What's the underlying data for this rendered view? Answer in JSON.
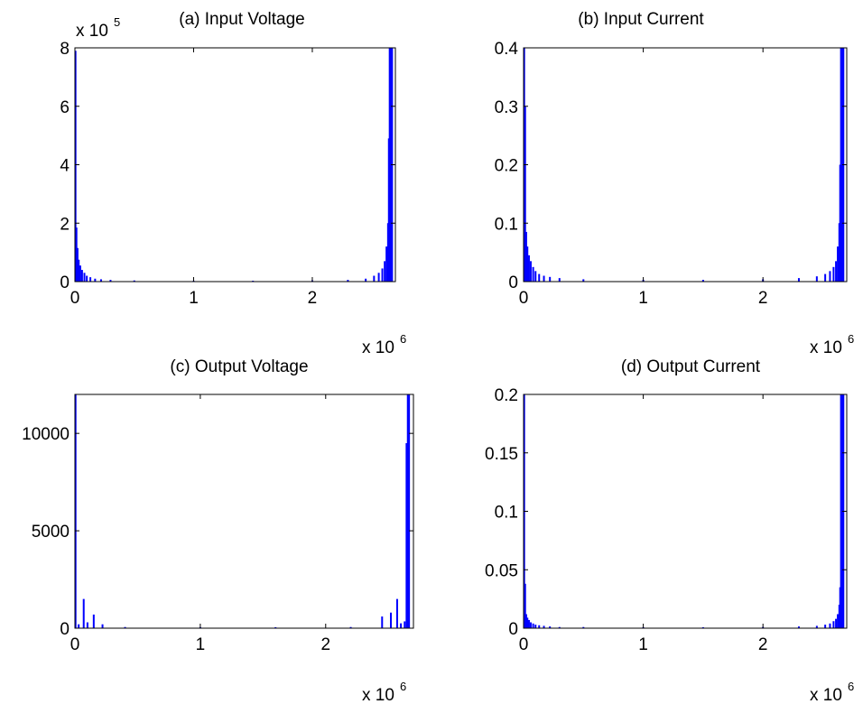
{
  "colors": {
    "series": "#0000ff",
    "axes": "#000000",
    "background": "#ffffff"
  },
  "chart_data": [
    {
      "type": "bar",
      "title": "(a) Input Voltage",
      "xlim": [
        0,
        2.7
      ],
      "ylim": [
        0,
        8
      ],
      "x_ticks": [
        0,
        1,
        2
      ],
      "x_tick_labels": [
        "0",
        "1",
        "2"
      ],
      "y_ticks": [
        0,
        2,
        4,
        6,
        8
      ],
      "y_tick_labels": [
        "0",
        "2",
        "4",
        "6",
        "8"
      ],
      "x_multiplier": {
        "base": "x 10",
        "exponent": "6"
      },
      "y_multiplier": {
        "base": "x 10",
        "exponent": "5"
      },
      "grid": false,
      "x": [
        0.005,
        0.013,
        0.022,
        0.032,
        0.045,
        0.06,
        0.08,
        0.1,
        0.13,
        0.17,
        0.22,
        0.3,
        0.5,
        1.0,
        1.5,
        2.0,
        2.3,
        2.45,
        2.52,
        2.56,
        2.59,
        2.61,
        2.625,
        2.638,
        2.645,
        2.652,
        2.66,
        2.666,
        2.672
      ],
      "values": [
        7.9,
        1.85,
        1.15,
        0.75,
        0.55,
        0.4,
        0.3,
        0.2,
        0.15,
        0.1,
        0.08,
        0.06,
        0.04,
        0.03,
        0.03,
        0.04,
        0.06,
        0.1,
        0.2,
        0.3,
        0.45,
        0.7,
        1.2,
        2.0,
        4.9,
        8.0,
        8.0,
        8.0,
        8.0
      ]
    },
    {
      "type": "bar",
      "title": "(b) Input Current",
      "xlim": [
        0,
        2.7
      ],
      "ylim": [
        0,
        0.4
      ],
      "x_ticks": [
        0,
        1,
        2
      ],
      "x_tick_labels": [
        "0",
        "1",
        "2"
      ],
      "y_ticks": [
        0,
        0.1,
        0.2,
        0.3,
        0.4
      ],
      "y_tick_labels": [
        "0",
        "0.1",
        "0.2",
        "0.3",
        "0.4"
      ],
      "x_multiplier": {
        "base": "x 10",
        "exponent": "6"
      },
      "grid": false,
      "x": [
        0.005,
        0.013,
        0.022,
        0.032,
        0.045,
        0.06,
        0.08,
        0.1,
        0.13,
        0.17,
        0.22,
        0.3,
        0.5,
        1.0,
        1.5,
        2.0,
        2.3,
        2.45,
        2.52,
        2.56,
        2.59,
        2.61,
        2.625,
        2.638,
        2.645,
        2.652,
        2.66,
        2.666,
        2.672
      ],
      "values": [
        0.4,
        0.3,
        0.085,
        0.06,
        0.045,
        0.035,
        0.025,
        0.018,
        0.013,
        0.01,
        0.008,
        0.006,
        0.004,
        0.003,
        0.003,
        0.004,
        0.006,
        0.009,
        0.013,
        0.018,
        0.025,
        0.035,
        0.06,
        0.1,
        0.2,
        0.4,
        0.4,
        0.4,
        0.4
      ]
    },
    {
      "type": "bar",
      "title": "(c) Output Voltage",
      "xlim": [
        0,
        2.7
      ],
      "ylim": [
        0,
        12000
      ],
      "x_ticks": [
        0,
        1,
        2
      ],
      "x_tick_labels": [
        "0",
        "1",
        "2"
      ],
      "y_ticks": [
        0,
        5000,
        10000
      ],
      "y_tick_labels": [
        "0",
        "5000",
        "10000"
      ],
      "x_multiplier": {
        "base": "x 10",
        "exponent": "6"
      },
      "grid": false,
      "x": [
        0.005,
        0.03,
        0.07,
        0.1,
        0.15,
        0.22,
        0.4,
        1.0,
        1.6,
        2.2,
        2.45,
        2.52,
        2.57,
        2.6,
        2.63,
        2.645,
        2.655,
        2.665
      ],
      "values": [
        12000,
        200,
        1500,
        300,
        700,
        200,
        60,
        50,
        50,
        60,
        600,
        800,
        1500,
        250,
        350,
        9500,
        12000,
        12000
      ]
    },
    {
      "type": "bar",
      "title": "(d) Output Current",
      "xlim": [
        0,
        2.7
      ],
      "ylim": [
        0,
        0.2
      ],
      "x_ticks": [
        0,
        1,
        2
      ],
      "x_tick_labels": [
        "0",
        "1",
        "2"
      ],
      "y_ticks": [
        0,
        0.05,
        0.1,
        0.15,
        0.2
      ],
      "y_tick_labels": [
        "0",
        "0.05",
        "0.1",
        "0.15",
        "0.2"
      ],
      "x_multiplier": {
        "base": "x 10",
        "exponent": "6"
      },
      "grid": false,
      "x": [
        0.005,
        0.013,
        0.022,
        0.032,
        0.045,
        0.06,
        0.08,
        0.1,
        0.13,
        0.17,
        0.22,
        0.3,
        0.5,
        1.0,
        1.5,
        2.0,
        2.3,
        2.45,
        2.52,
        2.56,
        2.59,
        2.61,
        2.625,
        2.638,
        2.645,
        2.652,
        2.66,
        2.666,
        2.672
      ],
      "values": [
        0.2,
        0.038,
        0.012,
        0.009,
        0.007,
        0.005,
        0.004,
        0.003,
        0.0025,
        0.002,
        0.0015,
        0.001,
        0.001,
        0.0008,
        0.0008,
        0.001,
        0.0015,
        0.002,
        0.003,
        0.004,
        0.006,
        0.008,
        0.012,
        0.02,
        0.035,
        0.2,
        0.2,
        0.2,
        0.2
      ]
    }
  ]
}
